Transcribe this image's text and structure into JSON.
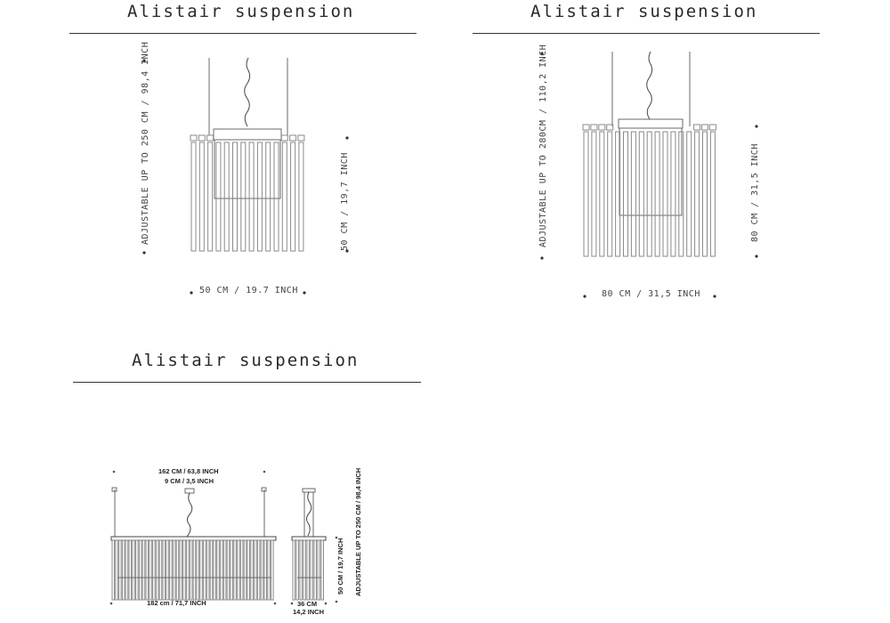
{
  "panels": [
    {
      "title": "Alistair suspension",
      "height_label": "ADJUSTABLE UP TO 250 CM / 98,4 INCH",
      "body_height_label": "50 CM / 19,7 INCH",
      "width_label": "50 CM / 19.7 INCH"
    },
    {
      "title": "Alistair suspension",
      "height_label": "ADJUSTABLE UP TO 280CM / 110,2 INCH",
      "body_height_label": "80 CM / 31,5 INCH",
      "width_label": "80 CM / 31,5 INCH"
    },
    {
      "title": "Alistair suspension",
      "top_width_label": "162 CM / 63,8 INCH",
      "canopy_label": "9 CM / 3,5 INCH",
      "body_width_label": "182 cm / 71,7 INCH",
      "depth_label_1": "36 CM",
      "depth_label_2": "14,2 INCH",
      "body_height_label": "50 CM / 19,7 INCH",
      "height_label": "ADJUSTABLE UP TO 250 CM / 98,4 INCH"
    }
  ]
}
